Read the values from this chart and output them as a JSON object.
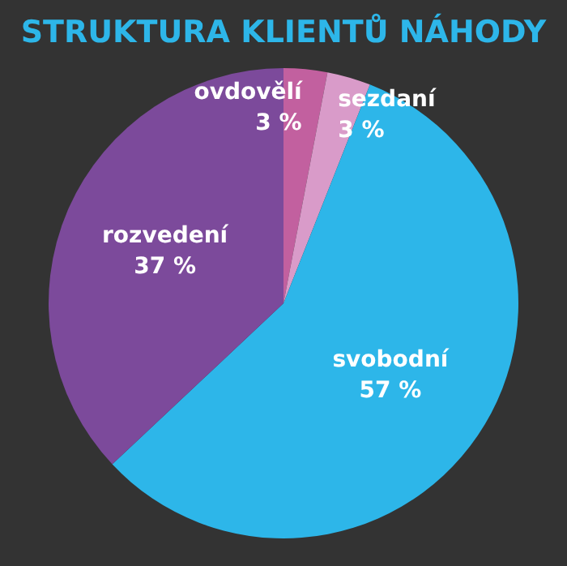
{
  "chart_data": {
    "type": "pie",
    "title": "STRUKTURA KLIENTŮ NÁHODY",
    "categories": [
      "ovdovělí",
      "sezdaní",
      "svobodní",
      "rozvedení"
    ],
    "values": [
      3,
      3,
      57,
      37
    ],
    "value_labels": [
      "3 %",
      "3 %",
      "57 %",
      "37 %"
    ],
    "colors": [
      "#c2609f",
      "#d99bc9",
      "#2db6e9",
      "#7c4a9b"
    ]
  }
}
